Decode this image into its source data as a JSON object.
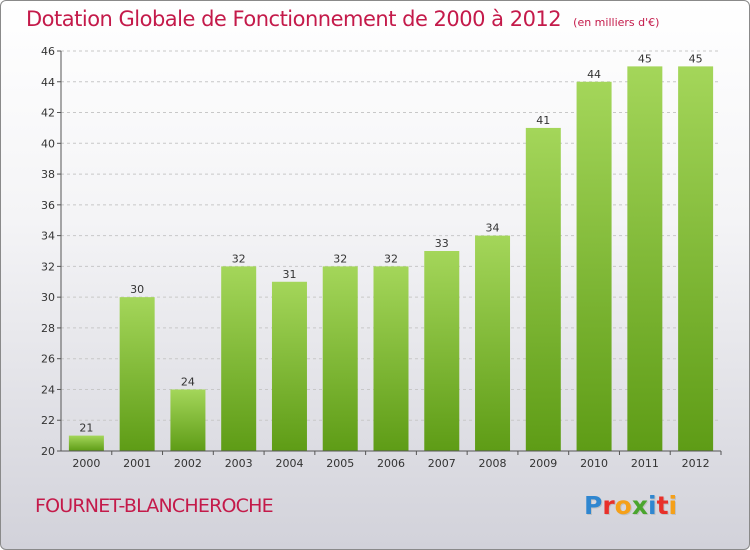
{
  "header": {
    "title": "Dotation Globale de Fonctionnement de 2000 à 2012",
    "subtitle": "(en milliers d'€)"
  },
  "footer": {
    "commune": "FOURNET-BLANCHEROCHE",
    "logo_letters": [
      "P",
      "r",
      "o",
      "x",
      "i",
      "t",
      "i"
    ],
    "logo_colors": [
      "#2f86d0",
      "#e8302a",
      "#f5a019",
      "#4aa52e",
      "#2f86d0",
      "#e8302a",
      "#f5a019"
    ]
  },
  "colors": {
    "bar_top": "#a4d65a",
    "bar_bottom": "#5e9c16",
    "grid": "#c8c8c8",
    "axis": "#555555"
  },
  "chart_data": {
    "type": "bar",
    "categories": [
      "2000",
      "2001",
      "2002",
      "2003",
      "2004",
      "2005",
      "2006",
      "2007",
      "2008",
      "2009",
      "2010",
      "2011",
      "2012"
    ],
    "values": [
      21,
      30,
      24,
      32,
      31,
      32,
      32,
      33,
      34,
      41,
      44,
      45,
      45
    ],
    "ylim": [
      20,
      46
    ],
    "yticks": [
      20,
      22,
      24,
      26,
      28,
      30,
      32,
      34,
      36,
      38,
      40,
      42,
      44,
      46
    ],
    "grid": true,
    "xlabel": "",
    "ylabel": ""
  }
}
